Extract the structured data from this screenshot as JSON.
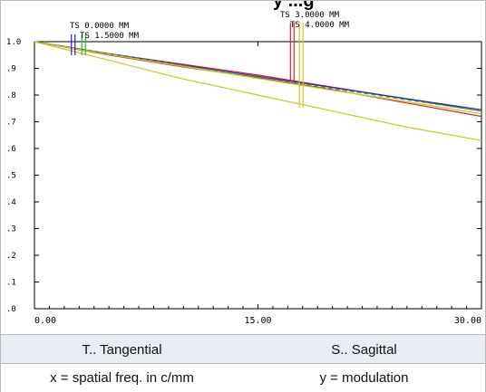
{
  "header_partial_text": "y ...g",
  "chart_data": {
    "type": "line",
    "x_range": [
      0,
      30
    ],
    "y_range": [
      0,
      1
    ],
    "x_ticks": [
      "0.00",
      "15.00",
      "30.00"
    ],
    "y_ticks": [
      ".0",
      ".1",
      ".2",
      ".3",
      ".4",
      ".5",
      ".6",
      ".7",
      ".8",
      ".9",
      "1.0"
    ],
    "field_labels": [
      {
        "text": "TS 0.0000 MM",
        "field_mm": 0.0,
        "marker_x": 2.6,
        "color": "#2020e0"
      },
      {
        "text": "TS 1.5000 MM",
        "field_mm": 1.5,
        "marker_x": 3.3,
        "color": "#20c020"
      },
      {
        "text": "TS 3.0000 MM",
        "field_mm": 3.0,
        "marker_x": 17.3,
        "color": "#e02020"
      },
      {
        "text": "TS 4.0000 MM",
        "field_mm": 4.0,
        "marker_x": 17.9,
        "color": "#c8c820"
      }
    ],
    "series": [
      {
        "color": "#c8c820",
        "dashed": false,
        "points": [
          [
            0,
            1.0
          ],
          [
            5,
            0.93
          ],
          [
            10,
            0.86
          ],
          [
            15,
            0.8
          ],
          [
            20,
            0.74
          ],
          [
            25,
            0.68
          ],
          [
            30,
            0.63
          ]
        ]
      },
      {
        "color": "#e02020",
        "dashed": false,
        "points": [
          [
            0,
            1.0
          ],
          [
            5,
            0.95
          ],
          [
            10,
            0.905
          ],
          [
            15,
            0.865
          ],
          [
            20,
            0.82
          ],
          [
            25,
            0.77
          ],
          [
            30,
            0.72
          ]
        ]
      },
      {
        "color": "#e02020",
        "dashed": false,
        "points": [
          [
            0,
            1.0
          ],
          [
            5,
            0.955
          ],
          [
            10,
            0.915
          ],
          [
            15,
            0.875
          ],
          [
            20,
            0.83
          ],
          [
            25,
            0.785
          ],
          [
            30,
            0.74
          ]
        ]
      },
      {
        "color": "#2020e0",
        "dashed": false,
        "points": [
          [
            0,
            1.0
          ],
          [
            5,
            0.955
          ],
          [
            10,
            0.912
          ],
          [
            15,
            0.87
          ],
          [
            20,
            0.828
          ],
          [
            25,
            0.786
          ],
          [
            30,
            0.745
          ]
        ]
      },
      {
        "color": "#20c020",
        "dashed": true,
        "points": [
          [
            0,
            1.0
          ],
          [
            5,
            0.955
          ],
          [
            10,
            0.91
          ],
          [
            15,
            0.867
          ],
          [
            20,
            0.824
          ],
          [
            25,
            0.782
          ],
          [
            30,
            0.74
          ]
        ]
      },
      {
        "color": "#c8c820",
        "dashed": false,
        "points": [
          [
            0,
            1.0
          ],
          [
            5,
            0.952
          ],
          [
            10,
            0.907
          ],
          [
            15,
            0.862
          ],
          [
            20,
            0.818
          ],
          [
            25,
            0.775
          ],
          [
            30,
            0.73
          ]
        ]
      }
    ]
  },
  "legend": {
    "tangential": "T.. Tangential",
    "sagittal": "S.. Sagittal"
  },
  "axes_info": {
    "x_desc": "x = spatial freq. in c/mm",
    "y_desc": "y = modulation"
  }
}
